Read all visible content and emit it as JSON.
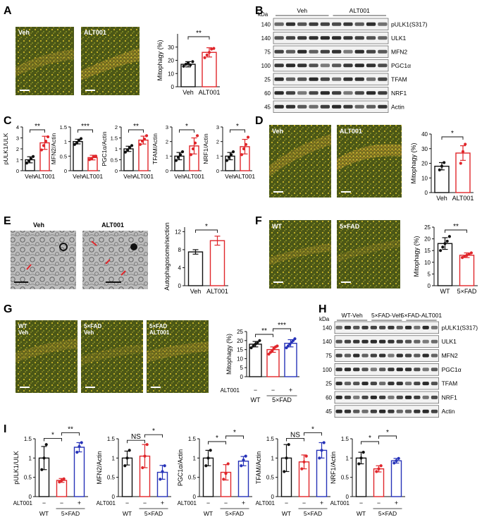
{
  "colors": {
    "ctrl": "#111111",
    "treat": "#e0262b",
    "rescue": "#2632b8",
    "micro_bg": "#4e5a16",
    "micro_fg": "#d8c02a",
    "em_bg": "#b9b9b9",
    "blot_band": "#1f1f1f",
    "arrow": "#e0262b"
  },
  "icons": {
    "scale_bar": "scale-bar-icon",
    "em_arrow": "red-arrow-icon"
  },
  "panels": {
    "A": {
      "label": "A",
      "img_labels": [
        "Veh",
        "ALT001"
      ],
      "chart_data": {
        "type": "bar",
        "categories": [
          "Veh",
          "ALT001"
        ],
        "values": [
          17,
          26
        ],
        "errors": [
          2,
          3.5
        ],
        "points": [
          [
            15.5,
            17,
            18,
            16.5,
            19
          ],
          [
            22,
            24,
            26,
            28.5,
            29
          ]
        ],
        "ylabel": "Mitophagy (%)",
        "yticks": [
          0,
          10,
          20,
          30
        ],
        "ylim": [
          0,
          40
        ],
        "sig": [
          {
            "a": 0,
            "b": 1,
            "text": "**"
          }
        ]
      }
    },
    "B": {
      "label": "B",
      "kda_label": "kDa",
      "groups": [
        "Veh",
        "ALT001"
      ],
      "rows": [
        {
          "name": "pULK1(S317)",
          "kda": "140"
        },
        {
          "name": "ULK1",
          "kda": "140"
        },
        {
          "name": "MFN2",
          "kda": "75"
        },
        {
          "name": "PGC1α",
          "kda": "100"
        },
        {
          "name": "TFAM",
          "kda": "25"
        },
        {
          "name": "NRF1",
          "kda": "60"
        },
        {
          "name": "Actin",
          "kda": "45"
        }
      ]
    },
    "C": {
      "label": "C",
      "chart_data": [
        {
          "type": "bar",
          "categories": [
            "Veh",
            "ALT001"
          ],
          "values": [
            1.0,
            2.55
          ],
          "errors": [
            0.28,
            0.6
          ],
          "points": [
            [
              0.7,
              0.9,
              1.1,
              1.3
            ],
            [
              1.9,
              2.3,
              2.7,
              3.1
            ]
          ],
          "ylabel": "pULK1/ULK",
          "yticks": [
            0,
            1,
            2,
            3,
            4
          ],
          "ylim": [
            0,
            4
          ],
          "sig": [
            {
              "a": 0,
              "b": 1,
              "text": "**"
            }
          ]
        },
        {
          "type": "bar",
          "categories": [
            "Veh",
            "ALT001"
          ],
          "values": [
            1.0,
            0.45
          ],
          "errors": [
            0.08,
            0.08
          ],
          "points": [
            [
              0.9,
              0.95,
              1.05,
              1.1
            ],
            [
              0.38,
              0.42,
              0.48,
              0.5
            ]
          ],
          "ylabel": "MFN2/Actin",
          "yticks": [
            0,
            0.5,
            1.0,
            1.5
          ],
          "ylim": [
            0,
            1.5
          ],
          "sig": [
            {
              "a": 0,
              "b": 1,
              "text": "***"
            }
          ]
        },
        {
          "type": "bar",
          "categories": [
            "Veh",
            "ALT001"
          ],
          "values": [
            1.0,
            1.4
          ],
          "errors": [
            0.12,
            0.18
          ],
          "points": [
            [
              0.85,
              0.95,
              1.05,
              1.15
            ],
            [
              1.2,
              1.35,
              1.45,
              1.6
            ]
          ],
          "ylabel": "PGC1α/Actin",
          "yticks": [
            0,
            0.5,
            1.0,
            1.5,
            2.0
          ],
          "ylim": [
            0,
            2.0
          ],
          "sig": [
            {
              "a": 0,
              "b": 1,
              "text": "**"
            }
          ]
        },
        {
          "type": "bar",
          "categories": [
            "Veh",
            "ALT001"
          ],
          "values": [
            1.0,
            1.7
          ],
          "errors": [
            0.25,
            0.55
          ],
          "points": [
            [
              0.7,
              0.9,
              1.1,
              1.3
            ],
            [
              1.1,
              1.5,
              1.9,
              2.4
            ]
          ],
          "ylabel": "TFAM/Actin",
          "yticks": [
            0,
            1,
            2,
            3
          ],
          "ylim": [
            0,
            3
          ],
          "sig": [
            {
              "a": 0,
              "b": 1,
              "text": "*"
            }
          ]
        },
        {
          "type": "bar",
          "categories": [
            "Veh",
            "ALT001"
          ],
          "values": [
            1.0,
            1.65
          ],
          "errors": [
            0.25,
            0.5
          ],
          "points": [
            [
              0.7,
              0.9,
              1.1,
              1.3
            ],
            [
              1.1,
              1.5,
              1.8,
              2.3
            ]
          ],
          "ylabel": "NRF1/Actin",
          "yticks": [
            0,
            1,
            2,
            3
          ],
          "ylim": [
            0,
            3
          ],
          "sig": [
            {
              "a": 0,
              "b": 1,
              "text": "*"
            }
          ]
        }
      ]
    },
    "D": {
      "label": "D",
      "img_labels": [
        "Veh",
        "ALT001"
      ],
      "chart_data": {
        "type": "bar",
        "categories": [
          "Veh",
          "ALT001"
        ],
        "values": [
          18,
          27
        ],
        "errors": [
          2.5,
          5
        ],
        "points": [
          [
            15.5,
            18,
            20.5
          ],
          [
            20,
            28,
            33
          ]
        ],
        "ylabel": "Mitophagy (%)",
        "yticks": [
          0,
          10,
          20,
          30,
          40
        ],
        "ylim": [
          0,
          40
        ],
        "sig": [
          {
            "a": 0,
            "b": 1,
            "text": "*"
          }
        ]
      }
    },
    "E": {
      "label": "E",
      "img_labels": [
        "Veh",
        "ALT001"
      ],
      "chart_data": {
        "type": "bar",
        "categories": [
          "Veh",
          "ALT001"
        ],
        "values": [
          7.5,
          10.0
        ],
        "errors": [
          0.5,
          1.0
        ],
        "points": [
          [],
          []
        ],
        "ylabel": "Autophagosome/section",
        "yticks": [
          0,
          4,
          8,
          12
        ],
        "ylim": [
          0,
          13
        ],
        "sig": [
          {
            "a": 0,
            "b": 1,
            "text": "*"
          }
        ]
      }
    },
    "F": {
      "label": "F",
      "img_labels": [
        "WT",
        "5×FAD"
      ],
      "chart_data": {
        "type": "bar",
        "categories": [
          "WT",
          "5×FAD"
        ],
        "values": [
          18,
          13
        ],
        "errors": [
          2.5,
          1
        ],
        "points": [
          [
            15,
            16.5,
            18,
            19,
            21
          ],
          [
            12,
            12.5,
            13,
            13.5,
            14
          ]
        ],
        "ylabel": "Mitophagy (%)",
        "yticks": [
          0,
          5,
          10,
          15,
          20,
          25
        ],
        "ylim": [
          0,
          25
        ],
        "sig": [
          {
            "a": 0,
            "b": 1,
            "text": "**"
          }
        ]
      }
    },
    "G": {
      "label": "G",
      "img_labels": [
        "WT\nVeh",
        "5×FAD\nVeh",
        "5×FAD\nALT001"
      ],
      "alt_label": "ALT001",
      "signs": [
        "−",
        "−",
        "+"
      ],
      "groups": [
        "WT",
        "5×FAD"
      ],
      "chart_data": {
        "type": "bar",
        "categories": [
          "WT",
          "5×FAD",
          "5×FAD"
        ],
        "values": [
          18,
          15,
          18.5
        ],
        "errors": [
          1.5,
          1.5,
          2
        ],
        "points": [
          [
            16,
            17,
            18,
            19,
            20
          ],
          [
            12.5,
            13.5,
            14.5,
            15.5,
            16.5,
            17
          ],
          [
            16,
            17,
            18,
            19,
            20,
            21
          ]
        ],
        "ylabel": "Mitophagy (%)",
        "yticks": [
          0,
          5,
          10,
          15,
          20,
          25
        ],
        "ylim": [
          0,
          25
        ],
        "sig": [
          {
            "a": 0,
            "b": 1,
            "text": "**"
          },
          {
            "a": 1,
            "b": 2,
            "text": "***"
          }
        ]
      }
    },
    "H": {
      "label": "H",
      "kda_label": "kDa",
      "groups": [
        "WT-Veh",
        "5×FAD-Veh",
        "5×FAD-ALT001"
      ],
      "rows": [
        {
          "name": "pULK1(S317)",
          "kda": "140"
        },
        {
          "name": "ULK1",
          "kda": "140"
        },
        {
          "name": "MFN2",
          "kda": "75"
        },
        {
          "name": "PGC1α",
          "kda": "100"
        },
        {
          "name": "TFAM",
          "kda": "25"
        },
        {
          "name": "NRF1",
          "kda": "60"
        },
        {
          "name": "Actin",
          "kda": "45"
        }
      ]
    },
    "I": {
      "label": "I",
      "alt_label": "ALT001",
      "signs": [
        "−",
        "−",
        "+"
      ],
      "groups": [
        "WT",
        "5×FAD"
      ],
      "chart_data": [
        {
          "type": "bar",
          "categories": [
            "WT",
            "5×FAD",
            "5×FAD"
          ],
          "values": [
            1.0,
            0.42,
            1.28
          ],
          "errors": [
            0.3,
            0.05,
            0.12
          ],
          "points": [
            [
              0.7,
              1.0,
              1.35
            ],
            [
              0.38,
              0.42,
              0.46
            ],
            [
              1.15,
              1.3,
              1.4
            ]
          ],
          "ylabel": "pULK1/ULK",
          "yticks": [
            0,
            0.5,
            1.0,
            1.5
          ],
          "ylim": [
            0,
            1.5
          ],
          "sig": [
            {
              "a": 0,
              "b": 1,
              "text": "*"
            },
            {
              "a": 1,
              "b": 2,
              "text": "**"
            }
          ]
        },
        {
          "type": "bar",
          "categories": [
            "WT",
            "5×FAD",
            "5×FAD"
          ],
          "values": [
            1.0,
            1.05,
            0.63
          ],
          "errors": [
            0.18,
            0.3,
            0.18
          ],
          "points": [
            [
              0.8,
              1.0,
              1.2
            ],
            [
              0.75,
              1.05,
              1.35
            ],
            [
              0.45,
              0.65,
              0.8
            ]
          ],
          "ylabel": "MFN2/Actin",
          "yticks": [
            0,
            0.5,
            1.0,
            1.5
          ],
          "ylim": [
            0,
            1.5
          ],
          "sig": [
            {
              "a": 0,
              "b": 1,
              "text": "NS"
            },
            {
              "a": 1,
              "b": 2,
              "text": "*"
            }
          ]
        },
        {
          "type": "bar",
          "categories": [
            "WT",
            "5×FAD",
            "5×FAD"
          ],
          "values": [
            1.0,
            0.63,
            0.92
          ],
          "errors": [
            0.2,
            0.2,
            0.12
          ],
          "points": [
            [
              0.8,
              1.0,
              1.2
            ],
            [
              0.45,
              0.6,
              0.85
            ],
            [
              0.8,
              0.95,
              1.05
            ]
          ],
          "ylabel": "PGC1α/Actin",
          "yticks": [
            0,
            0.5,
            1.0,
            1.5
          ],
          "ylim": [
            0,
            1.5
          ],
          "sig": [
            {
              "a": 0,
              "b": 1,
              "text": "*"
            },
            {
              "a": 1,
              "b": 2,
              "text": "*"
            }
          ]
        },
        {
          "type": "bar",
          "categories": [
            "WT",
            "5×FAD",
            "5×FAD"
          ],
          "values": [
            1.0,
            0.9,
            1.2
          ],
          "errors": [
            0.35,
            0.18,
            0.2
          ],
          "points": [
            [
              0.65,
              1.0,
              1.35
            ],
            [
              0.72,
              0.9,
              1.05
            ],
            [
              1.0,
              1.2,
              1.4
            ]
          ],
          "ylabel": "TFAM/Actin",
          "yticks": [
            0,
            0.5,
            1.0,
            1.5
          ],
          "ylim": [
            0,
            1.5
          ],
          "sig": [
            {
              "a": 0,
              "b": 1,
              "text": "NS"
            },
            {
              "a": 1,
              "b": 2,
              "text": "*"
            }
          ]
        },
        {
          "type": "bar",
          "categories": [
            "WT",
            "5×FAD",
            "5×FAD"
          ],
          "values": [
            1.0,
            0.72,
            0.93
          ],
          "errors": [
            0.15,
            0.08,
            0.06
          ],
          "points": [
            [
              0.85,
              1.0,
              1.15
            ],
            [
              0.65,
              0.72,
              0.8
            ],
            [
              0.87,
              0.93,
              0.99
            ]
          ],
          "ylabel": "NRF1/Actin",
          "yticks": [
            0,
            0.5,
            1.0,
            1.5
          ],
          "ylim": [
            0,
            1.5
          ],
          "sig": [
            {
              "a": 0,
              "b": 1,
              "text": "*"
            },
            {
              "a": 1,
              "b": 2,
              "text": "*"
            }
          ]
        }
      ]
    }
  }
}
